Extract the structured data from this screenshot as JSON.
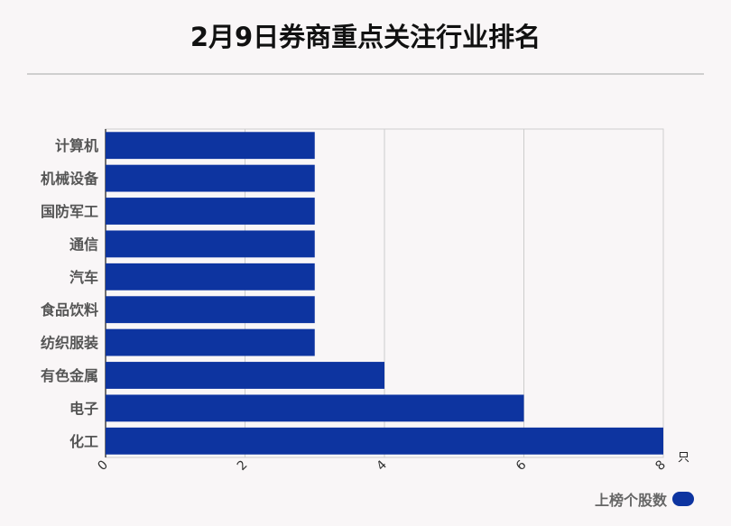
{
  "chart_data": {
    "type": "bar",
    "orientation": "horizontal",
    "title": "2月9日券商重点关注行业排名",
    "categories": [
      "计算机",
      "机械设备",
      "国防军工",
      "通信",
      "汽车",
      "食品饮料",
      "纺织服装",
      "有色金属",
      "电子",
      "化工"
    ],
    "series": [
      {
        "name": "上榜个股数",
        "values": [
          3,
          3,
          3,
          3,
          3,
          3,
          3,
          4,
          6,
          8
        ],
        "color": "#0d34a0"
      }
    ],
    "xlim": [
      0,
      8
    ],
    "xticks": [
      0,
      2,
      4,
      6,
      8
    ],
    "x_unit": "只",
    "grid": true,
    "legend_position": "bottom-right"
  }
}
